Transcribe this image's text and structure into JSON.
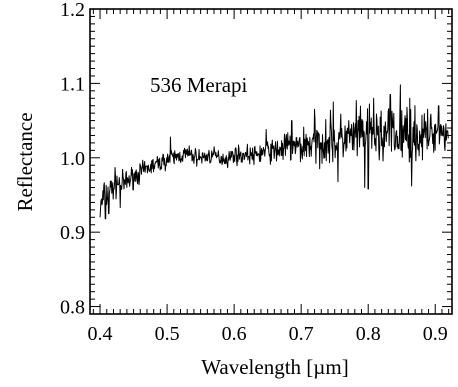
{
  "chart_data": {
    "type": "line",
    "title": "",
    "annotation": "536 Merapi",
    "xlabel": "Wavelength [µm]",
    "ylabel": "Reflectance",
    "xlim": [
      0.385,
      0.925
    ],
    "ylim": [
      0.79,
      1.2
    ],
    "x_ticks": [
      0.4,
      0.5,
      0.6,
      0.7,
      0.8,
      0.9
    ],
    "x_tick_labels": [
      "0.4",
      "0.5",
      "0.6",
      "0.7",
      "0.8",
      "0.9"
    ],
    "y_ticks": [
      0.8,
      0.9,
      1.0,
      1.1,
      1.2
    ],
    "y_tick_labels": [
      "0.8",
      "0.9",
      "1.0",
      "1.1",
      "1.2"
    ],
    "grid": false,
    "line_color": "#000000",
    "series": [
      {
        "x": [
          0.4,
          0.405,
          0.41,
          0.415,
          0.42,
          0.425,
          0.43,
          0.44,
          0.45,
          0.46,
          0.47,
          0.48,
          0.49,
          0.5,
          0.51,
          0.52,
          0.53,
          0.54,
          0.55,
          0.56,
          0.57,
          0.58,
          0.59,
          0.6,
          0.61,
          0.62,
          0.63,
          0.64,
          0.65,
          0.66,
          0.67,
          0.68,
          0.69,
          0.7,
          0.71,
          0.72,
          0.73,
          0.74,
          0.75,
          0.76,
          0.77,
          0.78,
          0.79,
          0.8,
          0.81,
          0.82,
          0.83,
          0.84,
          0.85,
          0.86,
          0.87,
          0.88,
          0.89,
          0.9,
          0.91,
          0.92
        ],
        "y": [
          0.93,
          0.945,
          0.95,
          0.955,
          0.962,
          0.968,
          0.962,
          0.968,
          0.975,
          0.98,
          0.985,
          0.99,
          0.993,
          0.998,
          1.0,
          1.003,
          1.005,
          1.002,
          1.0,
          1.002,
          1.003,
          1.0,
          0.998,
          1.005,
          1.003,
          1.005,
          1.002,
          1.007,
          1.01,
          1.008,
          1.012,
          1.015,
          1.013,
          1.015,
          1.02,
          1.017,
          1.022,
          1.025,
          1.02,
          1.025,
          1.028,
          1.023,
          1.03,
          1.032,
          1.028,
          1.03,
          1.033,
          1.027,
          1.03,
          1.033,
          1.03,
          1.028,
          1.032,
          1.035,
          1.036,
          1.03
        ],
        "noise": [
          0.02,
          0.02,
          0.018,
          0.018,
          0.017,
          0.016,
          0.015,
          0.013,
          0.012,
          0.011,
          0.01,
          0.01,
          0.01,
          0.01,
          0.01,
          0.01,
          0.01,
          0.01,
          0.009,
          0.009,
          0.009,
          0.009,
          0.009,
          0.01,
          0.01,
          0.01,
          0.011,
          0.012,
          0.013,
          0.014,
          0.016,
          0.018,
          0.02,
          0.022,
          0.024,
          0.025,
          0.026,
          0.027,
          0.028,
          0.028,
          0.028,
          0.028,
          0.029,
          0.03,
          0.031,
          0.032,
          0.032,
          0.032,
          0.033,
          0.033,
          0.03,
          0.028,
          0.025,
          0.022,
          0.02,
          0.02
        ],
        "peaks": [
          [
            0.848,
            1.098
          ],
          [
            0.833,
            1.085
          ],
          [
            0.808,
            1.08
          ],
          [
            0.862,
            1.08
          ],
          [
            0.782,
            1.077
          ],
          [
            0.748,
            1.075
          ],
          [
            0.72,
            1.065
          ],
          [
            0.905,
            1.07
          ],
          [
            0.92,
            1.065
          ],
          [
            0.505,
            1.028
          ],
          [
            0.648,
            1.038
          ],
          [
            0.686,
            1.05
          ]
        ],
        "dips": [
          [
            0.4,
            0.92
          ],
          [
            0.408,
            0.918
          ],
          [
            0.413,
            0.925
          ],
          [
            0.43,
            0.933
          ],
          [
            0.8,
            0.958
          ],
          [
            0.795,
            0.96
          ],
          [
            0.865,
            0.962
          ],
          [
            0.755,
            0.968
          ]
        ]
      }
    ]
  }
}
